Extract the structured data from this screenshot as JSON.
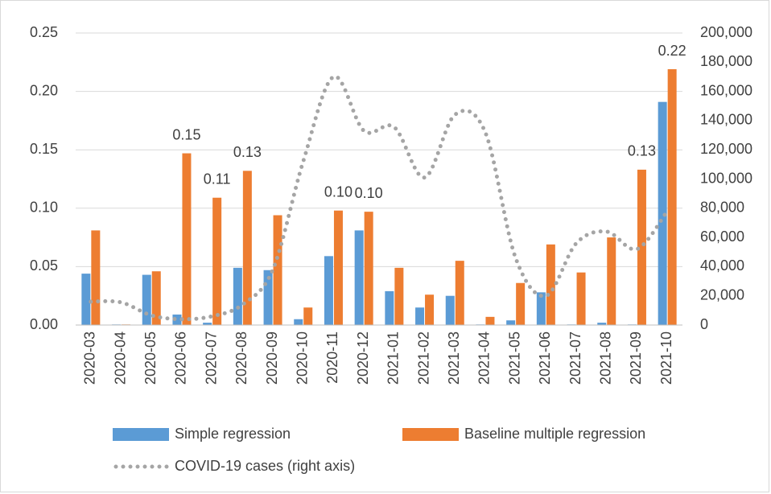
{
  "chart_data": {
    "type": "bar",
    "categories": [
      "2020-03",
      "2020-04",
      "2020-05",
      "2020-06",
      "2020-07",
      "2020-08",
      "2020-09",
      "2020-10",
      "2020-11",
      "2020-12",
      "2021-01",
      "2021-02",
      "2021-03",
      "2021-04",
      "2021-05",
      "2021-06",
      "2021-07",
      "2021-08",
      "2021-09",
      "2021-10"
    ],
    "series": [
      {
        "name": "Simple regression",
        "color": "#5b9bd5",
        "values": [
          0.044,
          0.0005,
          0.043,
          0.009,
          0.002,
          0.049,
          0.047,
          0.005,
          0.059,
          0.081,
          0.029,
          0.015,
          0.025,
          0.0005,
          0.004,
          0.028,
          0.0005,
          0.002,
          0.0005,
          0.191
        ]
      },
      {
        "name": "Baseline multiple regression",
        "color": "#ed7d31",
        "values": [
          0.081,
          0.0005,
          0.046,
          0.147,
          0.109,
          0.132,
          0.094,
          0.015,
          0.098,
          0.097,
          0.049,
          0.026,
          0.055,
          0.007,
          0.036,
          0.069,
          0.045,
          0.075,
          0.133,
          0.219
        ],
        "value_labels": [
          null,
          null,
          null,
          "0.15",
          "0.11",
          "0.13",
          null,
          null,
          "0.10",
          "0.10",
          null,
          null,
          null,
          null,
          null,
          null,
          null,
          null,
          "0.13",
          "0.22"
        ]
      },
      {
        "name": "COVID-19 cases (right axis)",
        "color": "#a5a5a5",
        "type": "line",
        "axis": "y2",
        "values": [
          16000,
          15500,
          6600,
          4000,
          6000,
          14000,
          38000,
          112000,
          170000,
          133000,
          135500,
          101000,
          144000,
          132000,
          46000,
          20000,
          56000,
          64000,
          52000,
          78000
        ]
      }
    ],
    "ylim": [
      0,
      0.25
    ],
    "yticks": [
      {
        "value": 0,
        "label": "0.00"
      },
      {
        "value": 0.05,
        "label": "0.05"
      },
      {
        "value": 0.1,
        "label": "0.10"
      },
      {
        "value": 0.15,
        "label": "0.15"
      },
      {
        "value": 0.2,
        "label": "0.20"
      },
      {
        "value": 0.25,
        "label": "0.25"
      }
    ],
    "y2lim": [
      0,
      200000
    ],
    "y2ticks": [
      0,
      {
        "value": 20000,
        "label": "20,000"
      },
      {
        "value": 40000,
        "label": "40,000"
      },
      {
        "value": 60000,
        "label": "60,000"
      },
      {
        "value": 80000,
        "label": "80,000"
      },
      {
        "value": 100000,
        "label": "100,000"
      },
      {
        "value": 120000,
        "label": "120,000"
      },
      {
        "value": 140000,
        "label": "140,000"
      },
      {
        "value": 160000,
        "label": "160,000"
      },
      {
        "value": 180000,
        "label": "180,000"
      },
      {
        "value": 200000,
        "label": "200,000"
      }
    ],
    "grid": true
  }
}
